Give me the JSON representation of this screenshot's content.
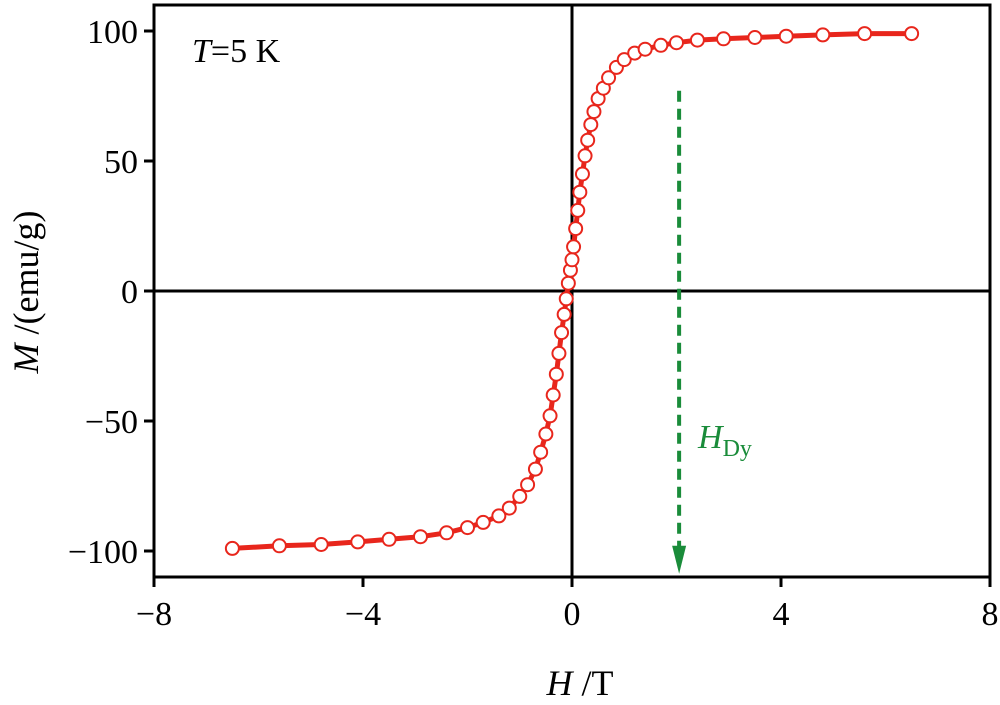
{
  "chart_data": {
    "type": "scatter",
    "title": "",
    "xlabel": {
      "symbol": "H",
      "unit": " /T"
    },
    "ylabel": {
      "symbol": "M",
      "unit": " /(emu/g)"
    },
    "xlim": [
      -8,
      8
    ],
    "ylim": [
      -110,
      110
    ],
    "xticks": [
      -8,
      -4,
      0,
      4,
      8
    ],
    "xtick_labels": [
      "−8",
      "−4",
      "0",
      "4",
      "8"
    ],
    "yticks": [
      -100,
      -50,
      0,
      50,
      100
    ],
    "ytick_labels": [
      "−100",
      "−50",
      "0",
      "50",
      "100"
    ],
    "grid": false,
    "zero_lines": true,
    "annotation": {
      "symbol": "T",
      "rest": "=5 K"
    },
    "marker": {
      "symbol": "H",
      "subscript": "Dy",
      "x": 2.05,
      "y_from": 77,
      "y_to": -108,
      "style": "dashed-arrow"
    },
    "colors": {
      "series": "#e8261c",
      "marker": "#1a8c3a",
      "axes": "#000000"
    },
    "series": [
      {
        "x": [
          -6.5,
          -5.6,
          -4.8,
          -4.1,
          -3.5,
          -2.9,
          -2.4,
          -2.0,
          -1.7,
          -1.4,
          -1.2,
          -1.0,
          -0.85,
          -0.7,
          -0.6,
          -0.5,
          -0.42,
          -0.36,
          -0.3,
          -0.25,
          -0.2,
          -0.15,
          -0.11,
          -0.07,
          -0.03,
          0.0,
          0.03,
          0.07,
          0.11,
          0.15,
          0.2,
          0.25,
          0.3,
          0.36,
          0.42,
          0.5,
          0.6,
          0.7,
          0.85,
          1.0,
          1.2,
          1.4,
          1.7,
          2.0,
          2.4,
          2.9,
          3.5,
          4.1,
          4.8,
          5.6,
          6.5
        ],
        "y": [
          -99,
          -98,
          -97.5,
          -96.5,
          -95.5,
          -94.5,
          -93,
          -91,
          -89,
          -86.5,
          -83.5,
          -79,
          -74.5,
          -68.5,
          -62,
          -55,
          -48,
          -40,
          -32,
          -24,
          -16,
          -9,
          -3,
          3,
          8,
          12,
          17,
          24,
          31,
          38,
          45,
          52,
          58,
          64,
          69,
          74,
          78,
          82,
          86,
          89,
          91.5,
          93,
          94.5,
          95.5,
          96.5,
          97,
          97.5,
          98,
          98.5,
          99,
          99
        ]
      }
    ]
  }
}
